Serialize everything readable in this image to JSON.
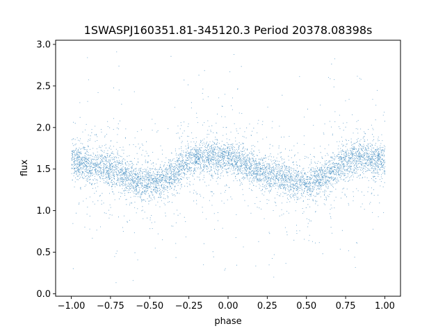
{
  "chart_data": {
    "type": "scatter",
    "title": "1SWASPJ160351.81-345120.3 Period 20378.08398s",
    "xlabel": "phase",
    "ylabel": "flux",
    "xlim": [
      -1.1,
      1.1
    ],
    "ylim": [
      -0.03,
      3.05
    ],
    "x_ticks": [
      -1.0,
      -0.75,
      -0.5,
      -0.25,
      0.0,
      0.25,
      0.5,
      0.75,
      1.0
    ],
    "x_tick_labels": [
      "−1.00",
      "−0.75",
      "−0.50",
      "−0.25",
      "0.00",
      "0.25",
      "0.50",
      "0.75",
      "1.00"
    ],
    "y_ticks": [
      0.0,
      0.5,
      1.0,
      1.5,
      2.0,
      2.5,
      3.0
    ],
    "y_tick_labels": [
      "0.0",
      "0.5",
      "1.0",
      "1.5",
      "2.0",
      "2.5",
      "3.0"
    ],
    "grid": false,
    "marker_color": "#1f77b4",
    "series": [
      {
        "phase_range": [
          -1.0,
          1.0
        ],
        "mean_flux_at_phase": [
          {
            "phase": -1.0,
            "flux": 1.6
          },
          {
            "phase": -0.8,
            "flux": 1.52
          },
          {
            "phase": -0.5,
            "flux": 1.33
          },
          {
            "phase": -0.15,
            "flux": 1.65
          },
          {
            "phase": 0.0,
            "flux": 1.62
          },
          {
            "phase": 0.25,
            "flux": 1.45
          },
          {
            "phase": 0.5,
            "flux": 1.32
          },
          {
            "phase": 0.85,
            "flux": 1.65
          },
          {
            "phase": 1.0,
            "flux": 1.62
          }
        ],
        "approx_point_count": 26000
      }
    ]
  }
}
